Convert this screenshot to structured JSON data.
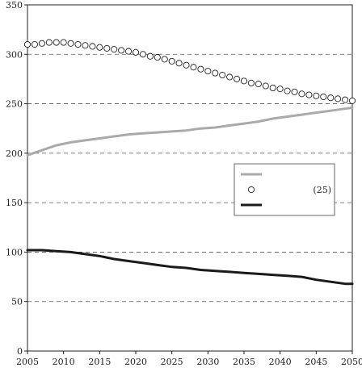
{
  "chart_data": {
    "type": "line",
    "title": "",
    "xlabel": "",
    "ylabel": "",
    "xlim": [
      2005,
      2050
    ],
    "ylim": [
      0,
      350
    ],
    "x_ticks": [
      "2005",
      "2010",
      "2015",
      "2020",
      "2025",
      "2030",
      "2035",
      "2040",
      "2045",
      "2050"
    ],
    "y_ticks": [
      "0",
      "50",
      "100",
      "150",
      "200",
      "250",
      "300",
      "350"
    ],
    "grid": "horizontal dashed",
    "legend_position": "right-middle",
    "series": [
      {
        "name": "",
        "style": "solid",
        "color": "#aaaaaa",
        "x": [
          2005,
          2007,
          2009,
          2011,
          2013,
          2015,
          2017,
          2019,
          2021,
          2023,
          2025,
          2027,
          2029,
          2031,
          2033,
          2035,
          2037,
          2039,
          2041,
          2043,
          2045,
          2047,
          2049,
          2050
        ],
        "values": [
          198,
          203,
          208,
          211,
          213,
          215,
          217,
          219,
          220,
          221,
          222,
          223,
          225,
          226,
          228,
          230,
          232,
          235,
          237,
          239,
          241,
          243,
          245,
          246
        ]
      },
      {
        "name": "(25)",
        "style": "markers",
        "color": "#222222",
        "x": [
          2005,
          2006,
          2007,
          2008,
          2009,
          2010,
          2011,
          2012,
          2013,
          2014,
          2015,
          2016,
          2017,
          2018,
          2019,
          2020,
          2021,
          2022,
          2023,
          2024,
          2025,
          2026,
          2027,
          2028,
          2029,
          2030,
          2031,
          2032,
          2033,
          2034,
          2035,
          2036,
          2037,
          2038,
          2039,
          2040,
          2041,
          2042,
          2043,
          2044,
          2045,
          2046,
          2047,
          2048,
          2049,
          2050
        ],
        "values": [
          310,
          310,
          311,
          312,
          312,
          312,
          311,
          310,
          309,
          308,
          307,
          306,
          305,
          304,
          303,
          302,
          300,
          298,
          297,
          295,
          293,
          291,
          289,
          287,
          285,
          283,
          281,
          279,
          277,
          275,
          273,
          271,
          270,
          268,
          266,
          265,
          263,
          262,
          260,
          259,
          258,
          257,
          256,
          255,
          254,
          253
        ]
      },
      {
        "name": "",
        "style": "solid",
        "color": "#1a1a1a",
        "x": [
          2005,
          2007,
          2009,
          2011,
          2013,
          2015,
          2017,
          2019,
          2021,
          2023,
          2025,
          2027,
          2029,
          2031,
          2033,
          2035,
          2037,
          2039,
          2041,
          2043,
          2045,
          2047,
          2049,
          2050
        ],
        "values": [
          102,
          102,
          101,
          100,
          98,
          96,
          93,
          91,
          89,
          87,
          85,
          84,
          82,
          81,
          80,
          79,
          78,
          77,
          76,
          75,
          72,
          70,
          68,
          68
        ]
      }
    ]
  }
}
